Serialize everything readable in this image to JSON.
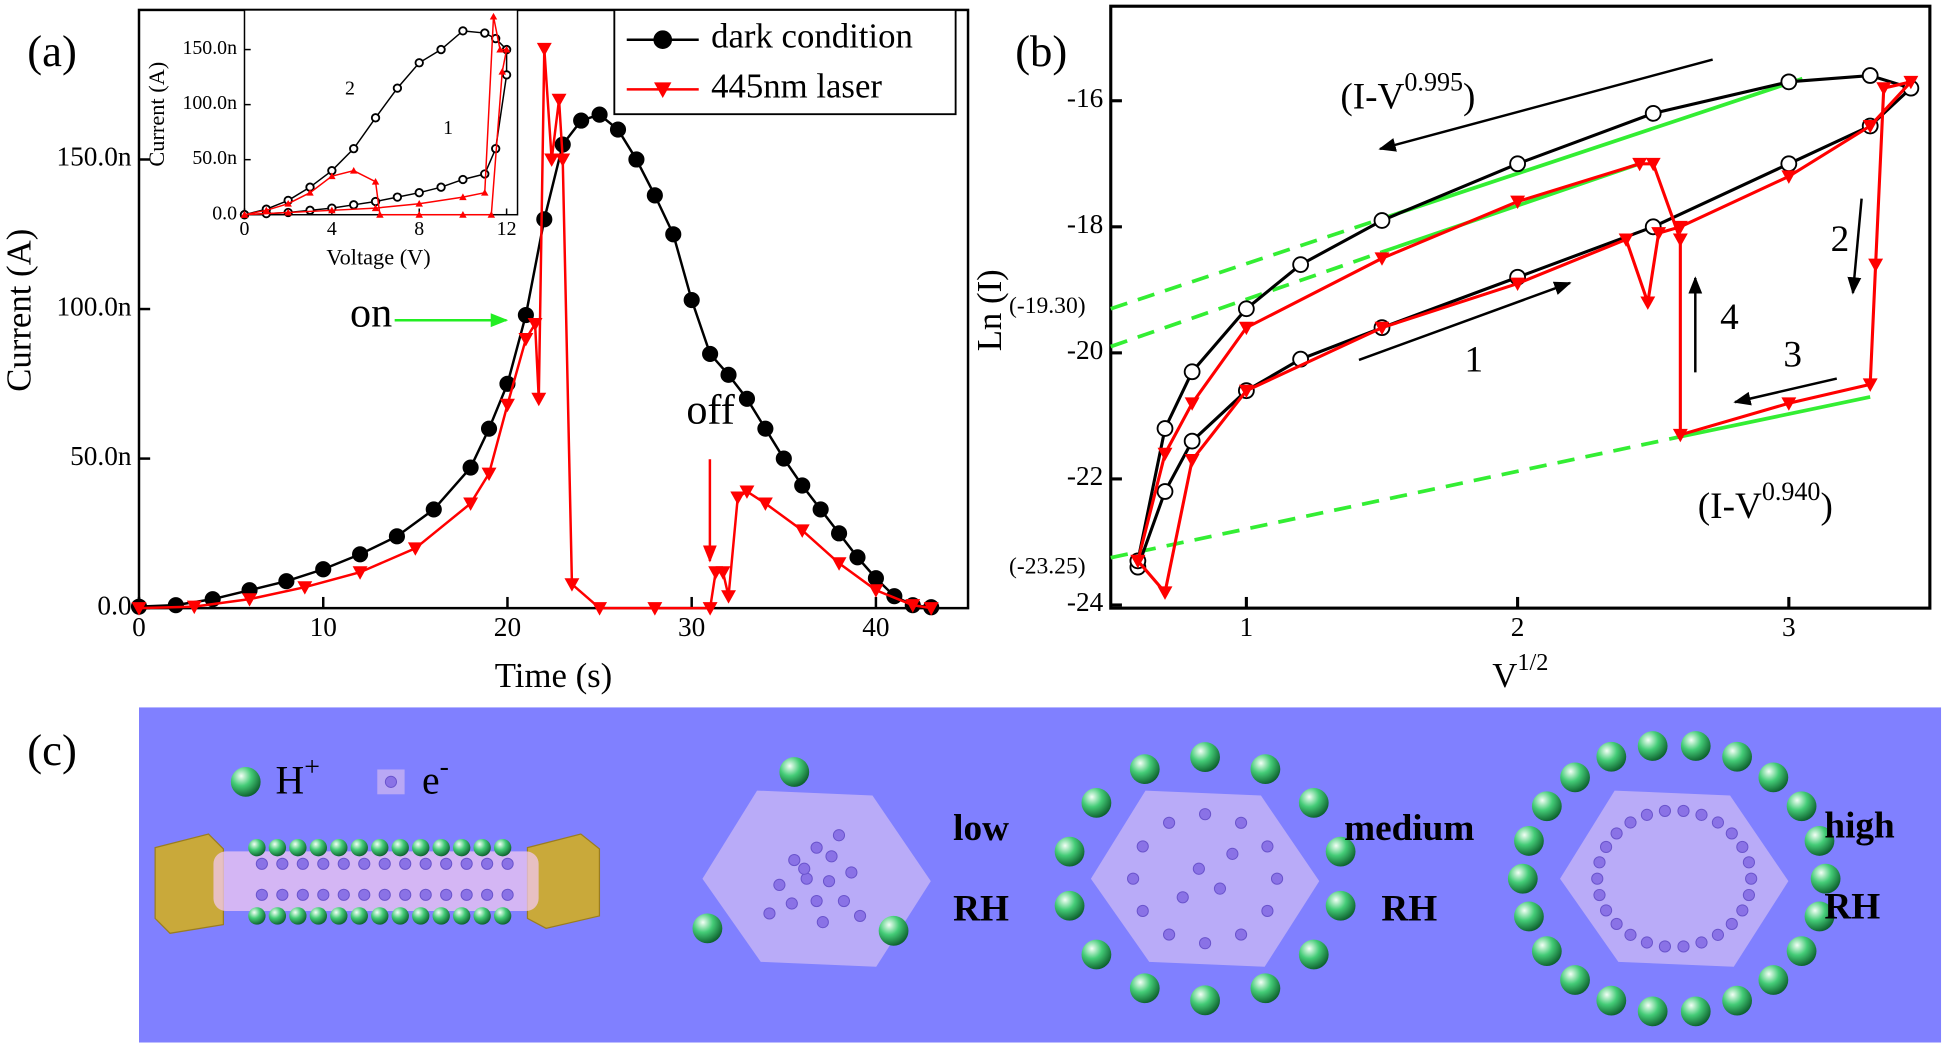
{
  "chart_data": [
    {
      "type": "line",
      "label": "(a)",
      "xlabel": "Time (s)",
      "ylabel": "Current (A)",
      "xlim": [
        0,
        45
      ],
      "ylim": [
        0,
        2e-07
      ],
      "xticks": [
        0,
        10,
        20,
        30,
        40
      ],
      "yticks": [
        {
          "value": 0,
          "label": "0.0"
        },
        {
          "value": 5e-08,
          "label": "50.0n"
        },
        {
          "value": 1e-07,
          "label": "100.0n"
        },
        {
          "value": 1.5e-07,
          "label": "150.0n"
        }
      ],
      "legend": "upper right",
      "series": [
        {
          "name": "dark condition",
          "color": "#000000",
          "marker": "circle-filled",
          "x": [
            0,
            2,
            4,
            6,
            8,
            10,
            12,
            14,
            16,
            18,
            19,
            20,
            21,
            22,
            23,
            24,
            25,
            26,
            27,
            28,
            29,
            30,
            31,
            32,
            33,
            34,
            35,
            36,
            37,
            38,
            39,
            40,
            41,
            42,
            43
          ],
          "values": [
            5e-10,
            1e-09,
            3e-09,
            6e-09,
            9e-09,
            1.3e-08,
            1.8e-08,
            2.4e-08,
            3.3e-08,
            4.7e-08,
            6e-08,
            7.5e-08,
            9.8e-08,
            1.3e-07,
            1.55e-07,
            1.63e-07,
            1.65e-07,
            1.6e-07,
            1.5e-07,
            1.38e-07,
            1.25e-07,
            1.03e-07,
            8.5e-08,
            7.8e-08,
            7e-08,
            6e-08,
            5e-08,
            4.1e-08,
            3.3e-08,
            2.5e-08,
            1.7e-08,
            1e-08,
            4e-09,
            1e-09,
            3e-10
          ]
        },
        {
          "name": "445nm laser",
          "color": "#ff0000",
          "marker": "triangle-down",
          "x": [
            0,
            3,
            6,
            9,
            12,
            15,
            18,
            19,
            20,
            21,
            21.5,
            21.7,
            22,
            22.4,
            22.8,
            23,
            23.5,
            25,
            28,
            31,
            31.3,
            31.7,
            32,
            32.5,
            33,
            34,
            36,
            38,
            40,
            42,
            43
          ],
          "values": [
            0,
            5e-10,
            3e-09,
            7e-09,
            1.2e-08,
            2e-08,
            3.5e-08,
            4.5e-08,
            6.8e-08,
            9e-08,
            9.5e-08,
            7e-08,
            1.87e-07,
            1.5e-07,
            1.7e-07,
            1.5e-07,
            8e-09,
            0,
            0,
            0,
            1.2e-08,
            1.2e-08,
            4e-09,
            3.7e-08,
            3.9e-08,
            3.5e-08,
            2.6e-08,
            1.5e-08,
            6e-09,
            1e-09,
            0
          ]
        }
      ],
      "annotations": [
        {
          "text": "on",
          "color": "#22ee22"
        },
        {
          "text": "off",
          "color": "#ff0000"
        }
      ]
    },
    {
      "type": "line",
      "xlabel": "Voltage (V)",
      "ylabel": "Current (A)",
      "xlim": [
        0,
        12.5
      ],
      "ylim": [
        0,
        1.86e-07
      ],
      "xticks": [
        0,
        4,
        8,
        12
      ],
      "yticks": [
        {
          "value": 0,
          "label": "0.0"
        },
        {
          "value": 5e-08,
          "label": "50.0n"
        },
        {
          "value": 1e-07,
          "label": "100.0n"
        },
        {
          "value": 1.5e-07,
          "label": "150.0n"
        }
      ],
      "series": [
        {
          "color": "#000000",
          "marker": "circle-open",
          "x": [
            0,
            1,
            2,
            3,
            4,
            5,
            6,
            7,
            8,
            9,
            10,
            11,
            11.5,
            12,
            12,
            11.5,
            11,
            10,
            9,
            8,
            7,
            6,
            5,
            4,
            3,
            2,
            1,
            0
          ],
          "values": [
            0,
            1e-09,
            2e-09,
            4e-09,
            6e-09,
            9e-09,
            1.2e-08,
            1.6e-08,
            2e-08,
            2.5e-08,
            3.2e-08,
            3.7e-08,
            6e-08,
            1.27e-07,
            1.5e-07,
            1.6e-07,
            1.65e-07,
            1.67e-07,
            1.5e-07,
            1.38e-07,
            1.15e-07,
            8.8e-08,
            6e-08,
            4e-08,
            2.5e-08,
            1.3e-08,
            5e-09,
            0
          ]
        },
        {
          "color": "#ff0000",
          "marker": "triangle-up",
          "x": [
            0,
            2,
            4,
            6,
            8,
            10,
            11,
            11.4,
            11.7,
            12,
            11.8,
            11.3,
            10,
            8,
            6.2,
            6,
            5,
            4,
            3,
            2,
            1,
            0
          ],
          "values": [
            0,
            2e-09,
            4e-09,
            6e-09,
            1e-08,
            1.6e-08,
            2e-08,
            1.8e-07,
            1.5e-07,
            1.5e-07,
            1.3e-07,
            0,
            0,
            0,
            0,
            3e-08,
            4e-08,
            3.5e-08,
            2e-08,
            1e-08,
            4e-09,
            0
          ]
        }
      ],
      "annotations": [
        {
          "text": "2"
        },
        {
          "text": "1"
        }
      ]
    },
    {
      "type": "line",
      "label": "(b)",
      "xlabel": {
        "text": "V",
        "sup": "1/2"
      },
      "ylabel": "Ln (I)",
      "xlim": [
        0.5,
        3.52
      ],
      "ylim": [
        -24.05,
        -14.5
      ],
      "xticks": [
        1,
        2,
        3
      ],
      "yticks": [
        -16,
        -18,
        -20,
        -22,
        -24
      ],
      "series": [
        {
          "color": "#000000",
          "marker": "circle-open",
          "x": [
            0.6,
            0.7,
            0.8,
            1.0,
            1.2,
            1.5,
            2.0,
            2.5,
            3.0,
            3.3,
            3.45,
            3.3,
            3.0,
            2.5,
            2.0,
            1.5,
            1.2,
            1.0,
            0.8,
            0.7,
            0.6
          ],
          "values": [
            -23.4,
            -22.2,
            -21.4,
            -20.6,
            -20.1,
            -19.6,
            -18.8,
            -18.0,
            -17.0,
            -16.4,
            -15.8,
            -15.6,
            -15.7,
            -16.2,
            -17.0,
            -17.9,
            -18.6,
            -19.3,
            -20.3,
            -21.2,
            -23.3
          ]
        },
        {
          "color": "#ff0000",
          "marker": "triangle-down",
          "x": [
            0.6,
            0.7,
            0.8,
            1.0,
            1.5,
            2.0,
            2.4,
            2.48,
            2.52,
            2.6,
            3.0,
            3.3,
            3.45,
            3.35,
            3.32,
            3.3,
            3.0,
            2.6,
            2.6,
            2.5,
            2.45,
            2.0,
            1.5,
            1.0,
            0.8,
            0.7,
            0.6
          ],
          "values": [
            -23.3,
            -23.8,
            -21.7,
            -20.6,
            -19.6,
            -18.9,
            -18.2,
            -19.2,
            -18.1,
            -18.0,
            -17.2,
            -16.4,
            -15.7,
            -15.8,
            -18.6,
            -20.5,
            -20.8,
            -21.3,
            -18.2,
            -17.0,
            -17.0,
            -17.6,
            -18.5,
            -19.6,
            -20.8,
            -21.6,
            -23.3
          ]
        }
      ],
      "fit_color": "#33ee33",
      "fits": [
        {
          "x": [
            0.5,
            1.5,
            3.05
          ],
          "values": [
            -19.3,
            -17.87,
            -15.65
          ]
        },
        {
          "x": [
            0.5,
            1.5,
            2.45
          ],
          "values": [
            -19.9,
            -18.4,
            -17.0
          ]
        },
        {
          "x": [
            0.5,
            2.6,
            3.3
          ],
          "values": [
            -23.25,
            -21.33,
            -20.7
          ]
        }
      ],
      "annotations": [
        {
          "text": "(I-V",
          "sup": "0.995",
          "tail": ")"
        },
        {
          "text": "(I-V",
          "sup": "0.940",
          "tail": ")"
        },
        {
          "text": "(-19.30)",
          "color": "#33ee33"
        },
        {
          "text": "(-23.25)",
          "color": "#33ee33"
        },
        {
          "text": "1"
        },
        {
          "text": "2"
        },
        {
          "text": "3"
        },
        {
          "text": "4"
        }
      ]
    }
  ],
  "diagram": {
    "label": "(c)",
    "h_ion": {
      "text": "H",
      "sup": "+"
    },
    "electron": {
      "text": "e",
      "sup": "-"
    },
    "states": [
      {
        "level": "low",
        "unit": "RH"
      },
      {
        "level": "medium",
        "unit": "RH"
      },
      {
        "level": "high",
        "unit": "RH"
      }
    ]
  }
}
